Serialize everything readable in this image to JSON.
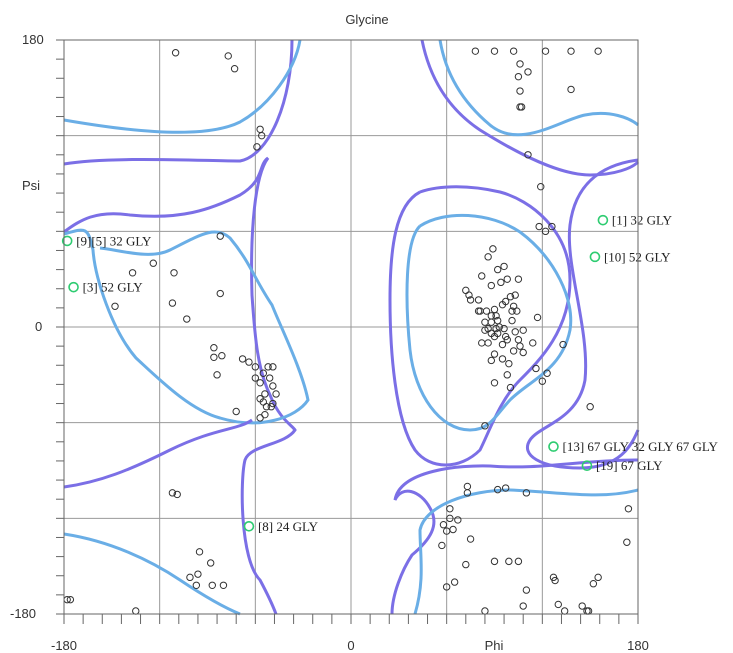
{
  "chart_data": {
    "type": "scatter",
    "title": "Glycine",
    "xlabel": "Phi",
    "ylabel": "Psi",
    "xlim": [
      -180,
      180
    ],
    "ylim": [
      -180,
      180
    ],
    "grid": true,
    "x_tick_labels": [
      "-180",
      "0",
      "Phi",
      "180"
    ],
    "y_tick_labels": [
      "180",
      "Psi",
      "0",
      "-180"
    ],
    "colors": {
      "outer_contour": "#7b6fe6",
      "inner_contour": "#6aaee6",
      "grid": "#999999",
      "normal_point": "#333333",
      "labeled_point": "#2ecc71"
    },
    "labeled_points": [
      {
        "id": "[1]",
        "label": "[1]   32 GLY",
        "phi": 158,
        "psi": 67
      },
      {
        "id": "[3]",
        "label": "[3]   52 GLY",
        "phi": -174,
        "psi": 25
      },
      {
        "id": "[8]",
        "label": "[8]   24 GLY",
        "phi": -64,
        "psi": -125
      },
      {
        "id": "[10]",
        "label": "[10]   52 GLY",
        "phi": 153,
        "psi": 44
      },
      {
        "id": "[19]",
        "label": "[19]   67 GLY",
        "phi": 148,
        "psi": -87
      },
      {
        "id": "cluster-left",
        "label": "[9][5] 32 GLY",
        "phi": -178,
        "psi": 54
      },
      {
        "id": "cluster-right",
        "label": "[13] 67 GLY 32 GLY 67 GLY",
        "phi": 127,
        "psi": -75
      }
    ],
    "normal_points": [
      [
        -110,
        172
      ],
      [
        -77,
        170
      ],
      [
        -73,
        162
      ],
      [
        -57,
        124
      ],
      [
        -56,
        120
      ],
      [
        -59,
        113
      ],
      [
        -124,
        40
      ],
      [
        -111,
        34
      ],
      [
        -137,
        34
      ],
      [
        -148,
        13
      ],
      [
        -112,
        15
      ],
      [
        -103,
        5
      ],
      [
        -82,
        21
      ],
      [
        -82,
        57
      ],
      [
        -86,
        -13
      ],
      [
        -86,
        -19
      ],
      [
        -81,
        -18
      ],
      [
        -84,
        -30
      ],
      [
        -68,
        -20
      ],
      [
        -64,
        -22
      ],
      [
        -60,
        -32
      ],
      [
        -55,
        -29
      ],
      [
        -54,
        -42
      ],
      [
        -49,
        -37
      ],
      [
        -53,
        -50
      ],
      [
        -49,
        -48
      ],
      [
        -57,
        -57
      ],
      [
        -72,
        -53
      ],
      [
        -54,
        -55
      ],
      [
        -57,
        -35
      ],
      [
        -52,
        -25
      ],
      [
        -49,
        -25
      ],
      [
        -60,
        -25
      ],
      [
        -51,
        -32
      ],
      [
        -47,
        -42
      ],
      [
        -57,
        -45
      ],
      [
        -55,
        -47
      ],
      [
        -50,
        -50
      ],
      [
        -112,
        -104
      ],
      [
        -109,
        -105
      ],
      [
        -95,
        -141
      ],
      [
        -88,
        -148
      ],
      [
        -87,
        -162
      ],
      [
        -97,
        -162
      ],
      [
        -80,
        -162
      ],
      [
        -96,
        -155
      ],
      [
        -101,
        -157
      ],
      [
        -135,
        -184
      ],
      [
        -178,
        -171
      ],
      [
        -176,
        -171
      ],
      [
        78,
        173
      ],
      [
        90,
        173
      ],
      [
        102,
        173
      ],
      [
        105,
        157
      ],
      [
        107,
        138
      ],
      [
        106,
        138
      ],
      [
        106,
        165
      ],
      [
        106,
        148
      ],
      [
        111,
        160
      ],
      [
        122,
        173
      ],
      [
        138,
        173
      ],
      [
        138,
        149
      ],
      [
        155,
        173
      ],
      [
        119,
        88
      ],
      [
        126,
        63
      ],
      [
        111,
        108
      ],
      [
        89,
        49
      ],
      [
        92,
        36
      ],
      [
        88,
        26
      ],
      [
        82,
        32
      ],
      [
        98,
        30
      ],
      [
        105,
        30
      ],
      [
        72,
        23
      ],
      [
        74,
        20
      ],
      [
        80,
        17
      ],
      [
        80,
        10
      ],
      [
        84,
        3
      ],
      [
        84,
        -2
      ],
      [
        86,
        -10
      ],
      [
        82,
        -10
      ],
      [
        88,
        -21
      ],
      [
        90,
        -17
      ],
      [
        92,
        -4
      ],
      [
        95,
        -11
      ],
      [
        95,
        -20
      ],
      [
        99,
        -23
      ],
      [
        98,
        -30
      ],
      [
        100,
        -38
      ],
      [
        90,
        -35
      ],
      [
        103,
        -3
      ],
      [
        108,
        -16
      ],
      [
        114,
        -10
      ],
      [
        117,
        6
      ],
      [
        116,
        -26
      ],
      [
        123,
        -29
      ],
      [
        120,
        -34
      ],
      [
        103,
        20
      ],
      [
        104,
        10
      ],
      [
        85,
        10
      ],
      [
        75,
        17
      ],
      [
        86,
        44
      ],
      [
        96,
        38
      ],
      [
        102,
        13
      ],
      [
        97,
        16
      ],
      [
        94,
        28
      ],
      [
        100,
        19
      ],
      [
        91,
        7
      ],
      [
        90,
        11
      ],
      [
        95,
        14
      ],
      [
        88,
        3
      ],
      [
        81,
        10
      ],
      [
        93,
        0
      ],
      [
        92,
        4
      ],
      [
        88,
        7
      ],
      [
        97,
        -6
      ],
      [
        101,
        4
      ],
      [
        101,
        10
      ],
      [
        86,
        -1
      ],
      [
        91,
        -1
      ],
      [
        96,
        -1
      ],
      [
        102,
        -15
      ],
      [
        105,
        -8
      ],
      [
        106,
        -12
      ],
      [
        108,
        -2
      ],
      [
        88,
        -4
      ],
      [
        90,
        -6
      ],
      [
        98,
        -8
      ],
      [
        84,
        -62
      ],
      [
        133,
        -11
      ],
      [
        150,
        -50
      ],
      [
        122,
        60
      ],
      [
        118,
        63
      ],
      [
        73,
        -104
      ],
      [
        73,
        -100
      ],
      [
        62,
        -114
      ],
      [
        62,
        -120
      ],
      [
        67,
        -121
      ],
      [
        64,
        -127
      ],
      [
        57,
        -137
      ],
      [
        60,
        -128
      ],
      [
        58,
        -124
      ],
      [
        75,
        -133
      ],
      [
        72,
        -149
      ],
      [
        90,
        -147
      ],
      [
        99,
        -147
      ],
      [
        105,
        -147
      ],
      [
        130,
        -174
      ],
      [
        128,
        -159
      ],
      [
        127,
        -157
      ],
      [
        152,
        -161
      ],
      [
        155,
        -157
      ],
      [
        145,
        -175
      ],
      [
        148,
        -183
      ],
      [
        174,
        -114
      ],
      [
        173,
        -135
      ],
      [
        110,
        -104
      ],
      [
        84,
        -182
      ],
      [
        108,
        -175
      ],
      [
        134,
        -187
      ],
      [
        149,
        -181
      ],
      [
        110,
        -165
      ],
      [
        92,
        -102
      ],
      [
        97,
        -101
      ],
      [
        65,
        -160
      ],
      [
        60,
        -163
      ]
    ]
  }
}
